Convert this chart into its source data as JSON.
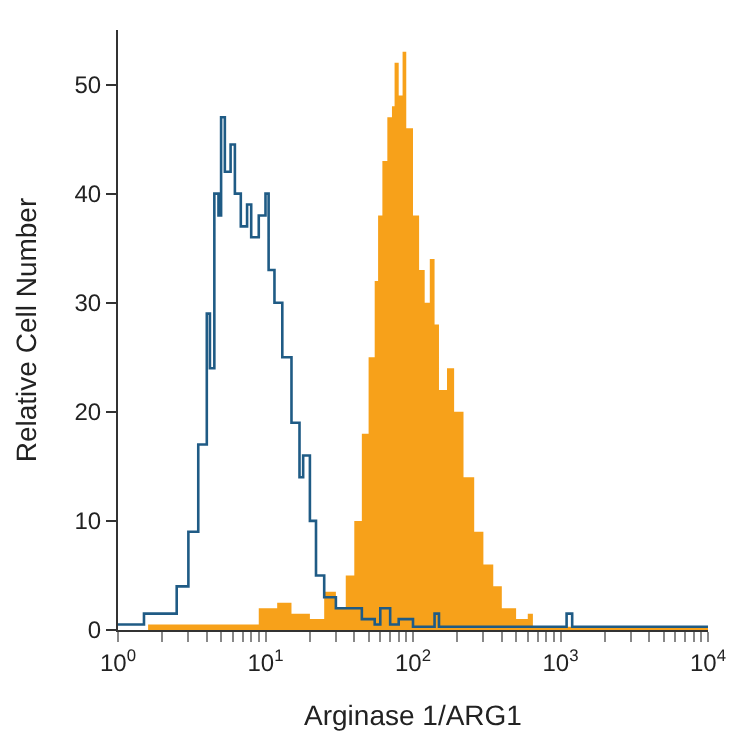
{
  "chart_data": {
    "type": "area",
    "xlabel": "Arginase 1/ARG1",
    "ylabel": "Relative Cell Number",
    "log": "x",
    "xlim": [
      1,
      10000
    ],
    "ylim": [
      0,
      55
    ],
    "xticks": [
      {
        "value": 1,
        "label": "10$^{0}$"
      },
      {
        "value": 2,
        "label": null
      },
      {
        "value": 3,
        "label": null
      },
      {
        "value": 4,
        "label": null
      },
      {
        "value": 5,
        "label": null
      },
      {
        "value": 6,
        "label": null
      },
      {
        "value": 7,
        "label": null
      },
      {
        "value": 8,
        "label": null
      },
      {
        "value": 9,
        "label": null
      },
      {
        "value": 10,
        "label": "10$^{1}$"
      },
      {
        "value": 20,
        "label": null
      },
      {
        "value": 30,
        "label": null
      },
      {
        "value": 40,
        "label": null
      },
      {
        "value": 50,
        "label": null
      },
      {
        "value": 60,
        "label": null
      },
      {
        "value": 70,
        "label": null
      },
      {
        "value": 80,
        "label": null
      },
      {
        "value": 90,
        "label": null
      },
      {
        "value": 100,
        "label": "10$^{2}$"
      },
      {
        "value": 200,
        "label": null
      },
      {
        "value": 300,
        "label": null
      },
      {
        "value": 400,
        "label": null
      },
      {
        "value": 500,
        "label": null
      },
      {
        "value": 600,
        "label": null
      },
      {
        "value": 700,
        "label": null
      },
      {
        "value": 800,
        "label": null
      },
      {
        "value": 900,
        "label": null
      },
      {
        "value": 1000,
        "label": "10$^{3}$"
      },
      {
        "value": 2000,
        "label": null
      },
      {
        "value": 3000,
        "label": null
      },
      {
        "value": 4000,
        "label": null
      },
      {
        "value": 5000,
        "label": null
      },
      {
        "value": 6000,
        "label": null
      },
      {
        "value": 7000,
        "label": null
      },
      {
        "value": 8000,
        "label": null
      },
      {
        "value": 9000,
        "label": null
      },
      {
        "value": 10000,
        "label": "10$^{4}$"
      }
    ],
    "yticks": [
      0,
      10,
      20,
      30,
      40,
      50
    ],
    "series": [
      {
        "color": "#f7a11a",
        "x": [
          1.6,
          5,
          8,
          9,
          10,
          12,
          15,
          20,
          25,
          30,
          35,
          40,
          45,
          50,
          55,
          58,
          62,
          67,
          72,
          75,
          80,
          85,
          90,
          100,
          110,
          120,
          130,
          140,
          150,
          170,
          190,
          220,
          260,
          300,
          350,
          400,
          500,
          600,
          650,
          10000
        ],
        "values": [
          0.5,
          0.5,
          0.5,
          2,
          2,
          2.5,
          1.5,
          1,
          3.5,
          2,
          5,
          10,
          18,
          25,
          32,
          38,
          43,
          47,
          48,
          52,
          49,
          53,
          46,
          38,
          33,
          30,
          34,
          28,
          22,
          24,
          20,
          14,
          9,
          6,
          4,
          2,
          1,
          1.5,
          0.3,
          0.3
        ]
      },
      {
        "type": "step",
        "color": "#1f5b85",
        "x": [
          1,
          1.5,
          2,
          2.5,
          3,
          3.5,
          4,
          4.2,
          4.5,
          4.8,
          5,
          5.3,
          5.8,
          6.2,
          6.8,
          7.5,
          8,
          9,
          10,
          10.5,
          11.5,
          13,
          15,
          17,
          18,
          20,
          22,
          25,
          30,
          40,
          45,
          55,
          60,
          70,
          80,
          100,
          130,
          140,
          150,
          1000,
          1100,
          1200,
          10000
        ],
        "values": [
          0.5,
          1.5,
          1.5,
          4,
          9,
          17,
          29,
          24,
          40,
          38,
          47,
          42,
          44.5,
          40,
          37,
          39,
          36,
          38,
          40,
          33,
          30,
          25,
          19,
          14,
          16,
          10,
          5,
          3,
          2,
          2,
          1,
          0.5,
          2,
          0.5,
          1,
          0.3,
          0.3,
          1.5,
          0.3,
          0.3,
          1.5,
          0.3,
          0.3
        ]
      }
    ]
  }
}
